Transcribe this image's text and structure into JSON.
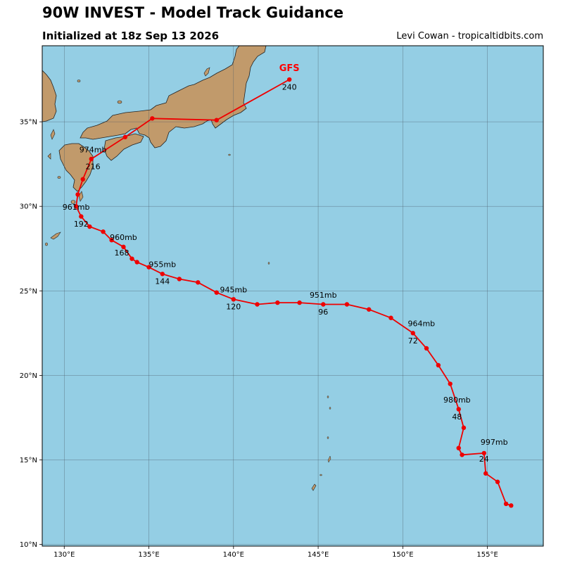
{
  "header": {
    "title": "90W INVEST - Model Track Guidance",
    "subtitle": "Initialized at 18z Sep 13 2026",
    "credit": "Levi Cowan - tropicaltidbits.com"
  },
  "colors": {
    "ocean": "#94cee4",
    "land": "#c19a6b",
    "track": "#ee0000",
    "model_label": "#ff0000",
    "grid": "#4a5a66"
  },
  "chart_data": {
    "type": "map-track",
    "extent": {
      "lon": [
        128.7,
        158.3
      ],
      "lat": [
        9.9,
        39.5
      ]
    },
    "lon_ticks": [
      130,
      135,
      140,
      145,
      150,
      155
    ],
    "lon_tick_labels": [
      "130°E",
      "135°E",
      "140°E",
      "145°E",
      "150°E",
      "155°E"
    ],
    "lat_ticks": [
      10,
      15,
      20,
      25,
      30,
      35
    ],
    "lat_tick_labels": [
      "10°N",
      "15°N",
      "20°N",
      "25°N",
      "30°N",
      "35°N"
    ],
    "grid": true,
    "model": "GFS",
    "track": [
      [
        156.4,
        12.3
      ],
      [
        156.1,
        12.4
      ],
      [
        155.6,
        13.7
      ],
      [
        154.9,
        14.2
      ],
      [
        154.8,
        15.4
      ],
      [
        153.5,
        15.3
      ],
      [
        153.3,
        15.7
      ],
      [
        153.6,
        16.9
      ],
      [
        153.3,
        18.0
      ],
      [
        152.8,
        19.5
      ],
      [
        152.1,
        20.6
      ],
      [
        151.4,
        21.6
      ],
      [
        150.6,
        22.5
      ],
      [
        149.3,
        23.4
      ],
      [
        148.0,
        23.9
      ],
      [
        146.7,
        24.2
      ],
      [
        145.3,
        24.2
      ],
      [
        143.9,
        24.3
      ],
      [
        142.6,
        24.3
      ],
      [
        141.4,
        24.2
      ],
      [
        140.0,
        24.5
      ],
      [
        139.0,
        24.9
      ],
      [
        137.9,
        25.5
      ],
      [
        136.8,
        25.7
      ],
      [
        135.8,
        26.0
      ],
      [
        135.0,
        26.4
      ],
      [
        134.3,
        26.7
      ],
      [
        134.0,
        26.9
      ],
      [
        133.5,
        27.6
      ],
      [
        132.8,
        28.0
      ],
      [
        132.3,
        28.5
      ],
      [
        131.5,
        28.8
      ],
      [
        131.0,
        29.4
      ],
      [
        130.7,
        30.0
      ],
      [
        130.8,
        30.7
      ],
      [
        131.1,
        31.6
      ],
      [
        131.6,
        32.8
      ],
      [
        133.6,
        34.1
      ],
      [
        135.2,
        35.2
      ],
      [
        139.0,
        35.1
      ],
      [
        143.3,
        37.5
      ]
    ],
    "labels": [
      {
        "text": "997mb",
        "lon": 155.4,
        "lat": 15.9
      },
      {
        "text": "24",
        "lon": 154.8,
        "lat": 14.9
      },
      {
        "text": "980mb",
        "lon": 153.2,
        "lat": 18.4
      },
      {
        "text": "48",
        "lon": 153.2,
        "lat": 17.4
      },
      {
        "text": "964mb",
        "lon": 151.1,
        "lat": 22.9
      },
      {
        "text": "72",
        "lon": 150.6,
        "lat": 21.9
      },
      {
        "text": "951mb",
        "lon": 145.3,
        "lat": 24.6
      },
      {
        "text": "96",
        "lon": 145.3,
        "lat": 23.6
      },
      {
        "text": "945mb",
        "lon": 140.0,
        "lat": 24.9
      },
      {
        "text": "120",
        "lon": 140.0,
        "lat": 23.9
      },
      {
        "text": "955mb",
        "lon": 135.8,
        "lat": 26.4
      },
      {
        "text": "144",
        "lon": 135.8,
        "lat": 25.4
      },
      {
        "text": "960mb",
        "lon": 133.5,
        "lat": 28.0
      },
      {
        "text": "168",
        "lon": 133.4,
        "lat": 27.1
      },
      {
        "text": "961mb",
        "lon": 130.7,
        "lat": 29.8
      },
      {
        "text": "192",
        "lon": 131.0,
        "lat": 28.8
      },
      {
        "text": "974mb",
        "lon": 131.7,
        "lat": 33.2
      },
      {
        "text": "216",
        "lon": 131.7,
        "lat": 32.2
      },
      {
        "text": "240",
        "lon": 143.3,
        "lat": 36.9
      }
    ],
    "model_label_pos": {
      "lon": 143.3,
      "lat": 38.0
    }
  }
}
